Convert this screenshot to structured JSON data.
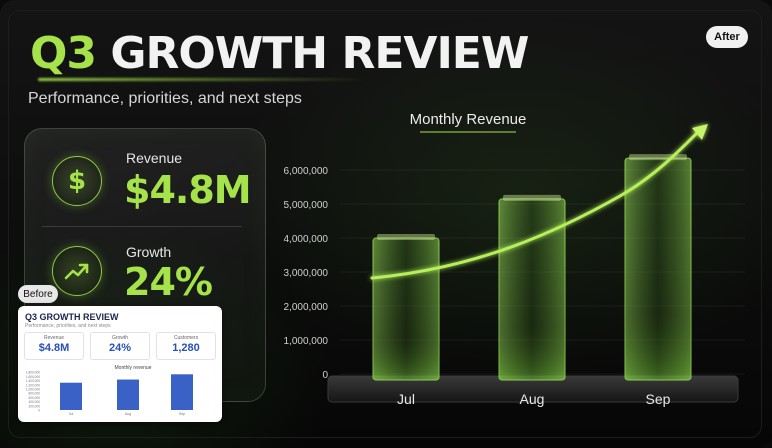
{
  "toolbar": {
    "after_label": "After",
    "before_label": "Before"
  },
  "slide": {
    "title_accent": "Q3",
    "title_rest": "GROWTH REVIEW",
    "subtitle": "Performance, priorities, and next steps"
  },
  "kpis": [
    {
      "label": "Revenue",
      "value": "$4.8M",
      "icon": "dollar-icon"
    },
    {
      "label": "Growth",
      "value": "24%",
      "icon": "trend-up-icon"
    }
  ],
  "colors": {
    "accent": "#a6e34a",
    "background": "#0a0a0a"
  },
  "chart_data": {
    "type": "bar",
    "title": "Monthly Revenue",
    "categories": [
      "Jul",
      "Aug",
      "Sep"
    ],
    "values": [
      4000000,
      5150000,
      6350000
    ],
    "ylim": [
      0,
      6000000
    ],
    "yticks": [
      "0",
      "1,000,000",
      "2,000,000",
      "3,000,000",
      "4,000,000",
      "5,000,000",
      "6,000,000"
    ],
    "trend_arrow": true,
    "grid": true
  },
  "before": {
    "title": "Q3 GROWTH REVIEW",
    "subtitle": "Performance, priorities, and next steps",
    "kpis": [
      {
        "label": "Revenue",
        "value": "$4.8M"
      },
      {
        "label": "Growth",
        "value": "24%"
      },
      {
        "label": "Customers",
        "value": "1,280"
      }
    ],
    "chart_data": {
      "type": "bar",
      "title": "Monthly revenue",
      "categories": [
        "Jul",
        "Aug",
        "Sep"
      ],
      "values": [
        1300000,
        1450000,
        1700000
      ],
      "ylim": [
        0,
        2000000
      ],
      "yticks": [
        "0",
        "200,000",
        "400,000",
        "600,000",
        "800,000",
        "1,000,000",
        "1,200,000",
        "1,400,000",
        "1,600,000",
        "1,800,000"
      ]
    }
  }
}
